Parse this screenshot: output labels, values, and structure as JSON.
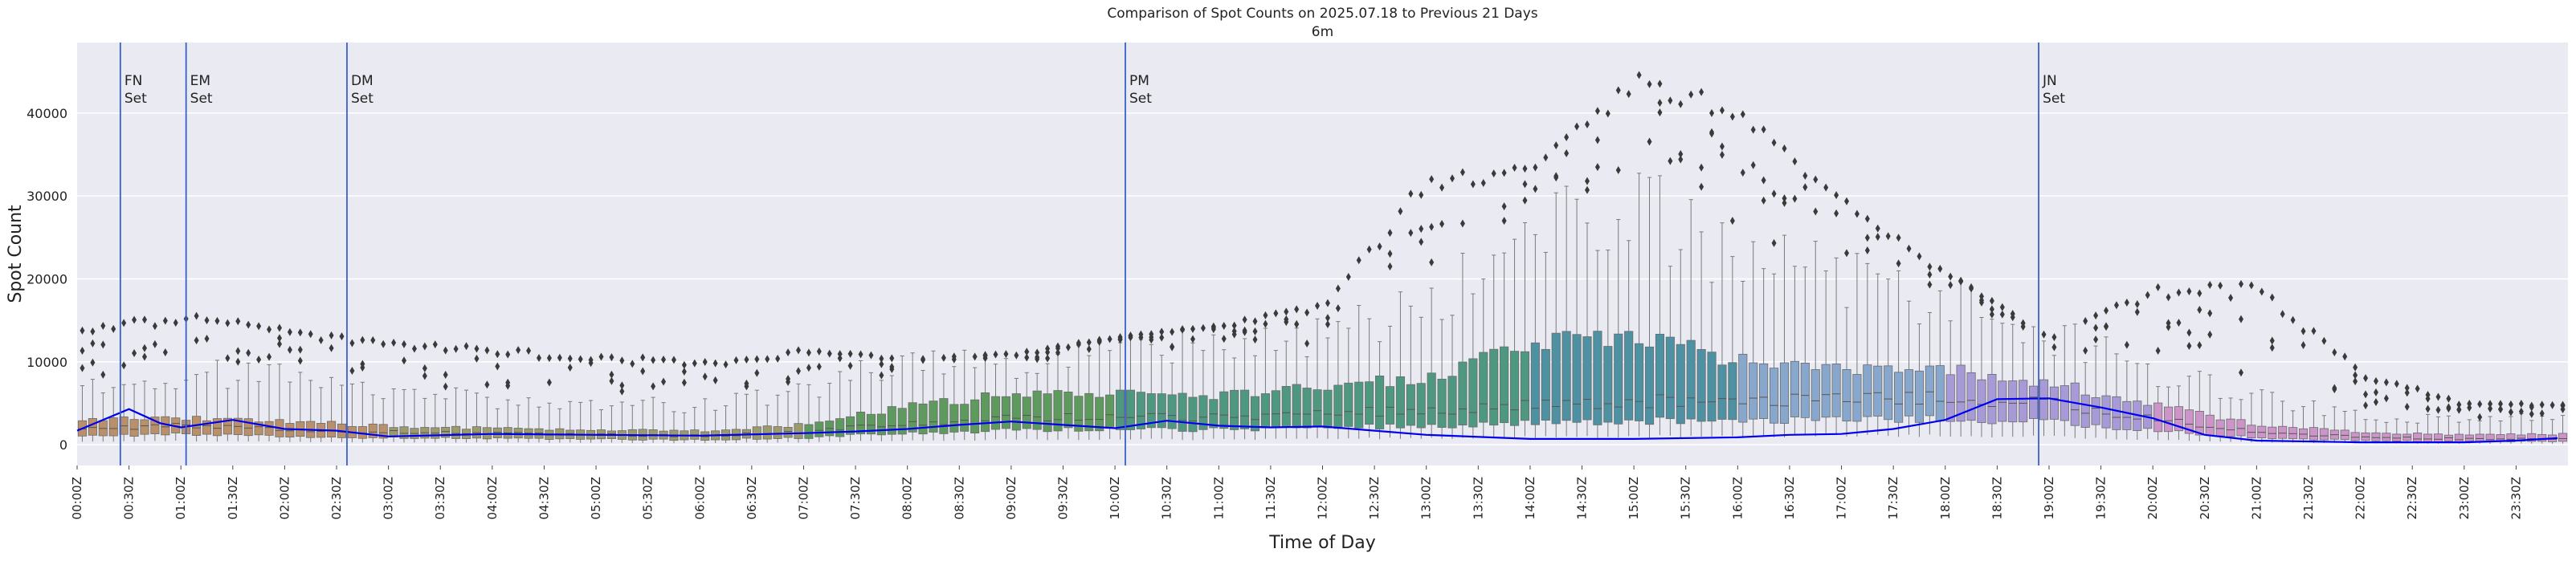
{
  "chart_data": {
    "type": "box",
    "title": "Comparison of Spot Counts on 2025.07.18 to Previous 21 Days",
    "subtitle": "6m",
    "xlabel": "Time of Day",
    "ylabel": "Spot Count",
    "ylim": [
      -2500,
      48500
    ],
    "yticks": [
      0,
      10000,
      20000,
      30000,
      40000
    ],
    "grid": true,
    "bin_minutes": 6,
    "xticks": [
      "00:00Z",
      "00:30Z",
      "01:00Z",
      "01:30Z",
      "02:00Z",
      "02:30Z",
      "03:00Z",
      "03:30Z",
      "04:00Z",
      "04:30Z",
      "05:00Z",
      "05:30Z",
      "06:00Z",
      "06:30Z",
      "07:00Z",
      "07:30Z",
      "08:00Z",
      "08:30Z",
      "09:00Z",
      "09:30Z",
      "10:00Z",
      "10:30Z",
      "11:00Z",
      "11:30Z",
      "12:00Z",
      "12:30Z",
      "13:00Z",
      "13:30Z",
      "14:00Z",
      "14:30Z",
      "15:00Z",
      "15:30Z",
      "16:00Z",
      "16:30Z",
      "17:00Z",
      "17:30Z",
      "18:00Z",
      "18:30Z",
      "19:00Z",
      "19:30Z",
      "20:00Z",
      "20:30Z",
      "21:00Z",
      "21:30Z",
      "22:00Z",
      "22:30Z",
      "23:00Z",
      "23:30Z"
    ],
    "sun_events": [
      {
        "time": "00:25Z",
        "label": [
          "FN",
          "Set"
        ]
      },
      {
        "time": "01:03Z",
        "label": [
          "EM",
          "Set"
        ]
      },
      {
        "time": "02:36Z",
        "label": [
          "DM",
          "Set"
        ]
      },
      {
        "time": "10:06Z",
        "label": [
          "PM",
          "Set"
        ]
      },
      {
        "time": "18:54Z",
        "label": [
          "JN",
          "Set"
        ]
      }
    ],
    "box_colors": [
      {
        "from": "00:00Z",
        "to": "03:00Z",
        "color": "#b9906a"
      },
      {
        "from": "03:00Z",
        "to": "07:00Z",
        "color": "#9a9a6a"
      },
      {
        "from": "07:00Z",
        "to": "10:00Z",
        "color": "#5e9a5e"
      },
      {
        "from": "10:00Z",
        "to": "14:00Z",
        "color": "#4f9880"
      },
      {
        "from": "14:00Z",
        "to": "16:00Z",
        "color": "#4d91a3"
      },
      {
        "from": "16:00Z",
        "to": "18:00Z",
        "color": "#87a7cc"
      },
      {
        "from": "18:00Z",
        "to": "20:00Z",
        "color": "#a79ad6"
      },
      {
        "from": "20:00Z",
        "to": "24:00Z",
        "color": "#cc94c8"
      }
    ],
    "profiles": {
      "median_hours": [
        0,
        1,
        2,
        3,
        5,
        6,
        7,
        8,
        9,
        10,
        11,
        12,
        13,
        14,
        15,
        16,
        17,
        18,
        19,
        20,
        21,
        22,
        23,
        24
      ],
      "median": [
        1800,
        2300,
        1800,
        1500,
        1200,
        1100,
        1500,
        2600,
        3200,
        3300,
        3300,
        3800,
        4200,
        4800,
        5200,
        5400,
        5600,
        5600,
        5000,
        3200,
        1600,
        900,
        700,
        700
      ],
      "q3": [
        3000,
        3300,
        2900,
        2200,
        1700,
        1700,
        2400,
        4600,
        6100,
        6000,
        6000,
        7000,
        8200,
        12000,
        13500,
        10000,
        9500,
        9000,
        7500,
        4800,
        2500,
        1500,
        1200,
        1300
      ],
      "whisker_hi": [
        7000,
        9000,
        9000,
        6500,
        5000,
        5000,
        7000,
        10500,
        10500,
        11000,
        13000,
        14000,
        17500,
        28000,
        30000,
        24000,
        21000,
        18000,
        14000,
        9500,
        6000,
        3500,
        3200,
        3300
      ],
      "outlier_hi": [
        14000,
        16000,
        14000,
        12500,
        11000,
        10000,
        11500,
        10500,
        11000,
        13000,
        14500,
        17000,
        33000,
        34000,
        45000,
        42000,
        30000,
        21000,
        13000,
        19000,
        20000,
        9000,
        5000,
        5000
      ]
    },
    "series": [
      {
        "name": "2025.07.18",
        "color": "#0000ee",
        "times": [
          "00:00Z",
          "00:30Z",
          "00:48Z",
          "01:00Z",
          "01:30Z",
          "02:00Z",
          "02:30Z",
          "03:00Z",
          "04:00Z",
          "05:00Z",
          "06:00Z",
          "07:00Z",
          "07:30Z",
          "08:00Z",
          "08:30Z",
          "09:00Z",
          "09:30Z",
          "10:00Z",
          "10:30Z",
          "11:00Z",
          "11:30Z",
          "12:00Z",
          "12:30Z",
          "13:00Z",
          "14:00Z",
          "15:00Z",
          "16:00Z",
          "16:30Z",
          "17:00Z",
          "17:30Z",
          "18:00Z",
          "18:30Z",
          "19:00Z",
          "19:30Z",
          "20:00Z",
          "20:30Z",
          "21:00Z",
          "22:00Z",
          "23:00Z",
          "23:30Z",
          "23:54Z"
        ],
        "values": [
          1700,
          4300,
          2600,
          2100,
          3000,
          1900,
          1700,
          1000,
          1300,
          1200,
          1100,
          1400,
          1600,
          1900,
          2400,
          2800,
          2400,
          2000,
          2900,
          2300,
          2100,
          2200,
          1700,
          1200,
          700,
          700,
          900,
          1200,
          1300,
          1900,
          3000,
          5500,
          5600,
          4500,
          3200,
          1200,
          500,
          300,
          300,
          500,
          800
        ]
      }
    ]
  }
}
